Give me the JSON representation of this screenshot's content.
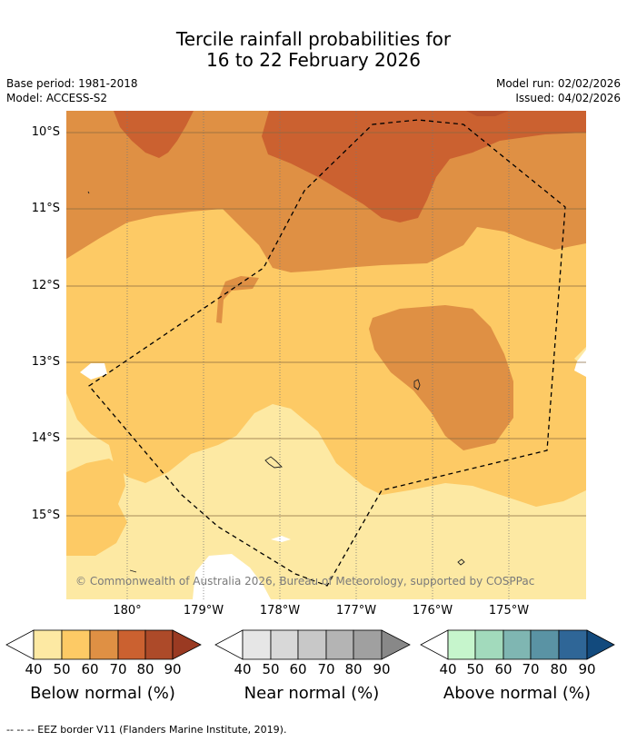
{
  "title_line1": "Tercile rainfall probabilities for",
  "title_line2": "16 to 22 February 2026",
  "meta": {
    "base_period": "Base period: 1981-2018",
    "model": "Model: ACCESS-S2",
    "model_run": "Model run: 02/02/2026",
    "issued": "Issued: 04/02/2026"
  },
  "lat_labels": [
    "10°S",
    "11°S",
    "12°S",
    "13°S",
    "14°S",
    "15°S"
  ],
  "lon_labels": [
    "180°",
    "179°W",
    "178°W",
    "177°W",
    "176°W",
    "175°W"
  ],
  "copyright": "© Commonwealth of Australia 2026, Bureau of Meteorology, supported by COSPPac",
  "colorbars": [
    {
      "name": "below",
      "title": "Below normal (%)",
      "ticks": [
        "40",
        "50",
        "60",
        "70",
        "80",
        "90"
      ],
      "colors": [
        "#fde9a3",
        "#fdca65",
        "#df9044",
        "#cb6130",
        "#ad4a29",
        "#9a3a22"
      ]
    },
    {
      "name": "near",
      "title": "Near normal (%)",
      "ticks": [
        "40",
        "50",
        "60",
        "70",
        "80",
        "90"
      ],
      "colors": [
        "#e6e6e6",
        "#d8d8d8",
        "#c8c8c8",
        "#b4b4b4",
        "#a0a0a0",
        "#888888"
      ]
    },
    {
      "name": "above",
      "title": "Above normal (%)",
      "ticks": [
        "40",
        "50",
        "60",
        "70",
        "80",
        "90"
      ],
      "colors": [
        "#c6f5cc",
        "#a2dabc",
        "#7fb6b2",
        "#5a93a4",
        "#2f6697",
        "#124a7d"
      ]
    }
  ],
  "footer": "--  --  -- EEZ border V11 (Flanders Marine Institute, 2019)."
}
